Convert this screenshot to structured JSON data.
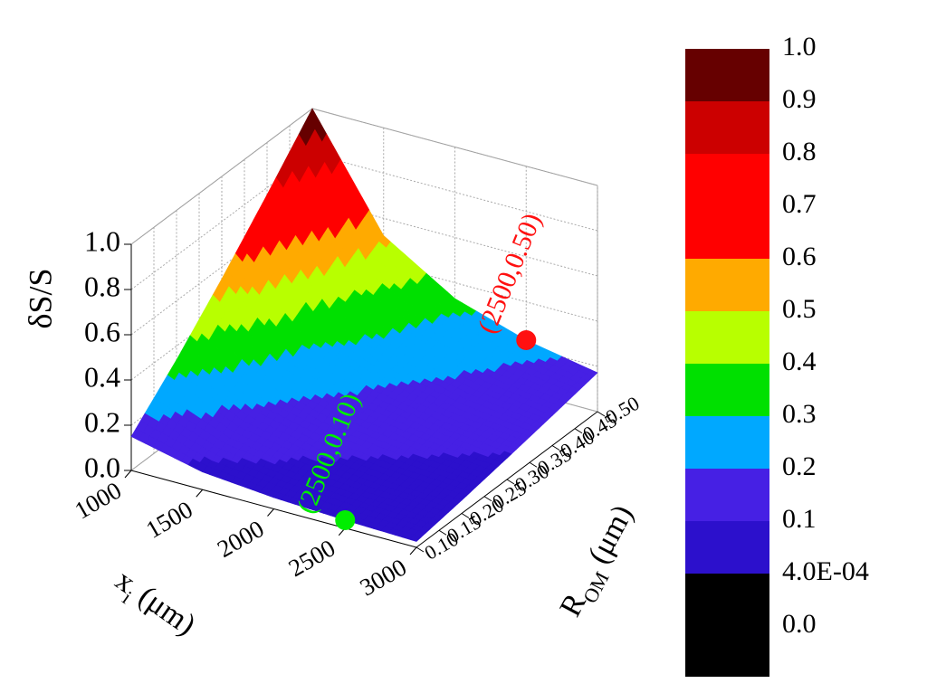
{
  "chart_data": {
    "type": "surface",
    "zlabel": "δS/S",
    "xlabel": {
      "main": "x",
      "sub": "i",
      "unit": "(μm)"
    },
    "ylabel": {
      "main": "R",
      "sub": "OM",
      "unit": "(μm)"
    },
    "x": [
      1000,
      1500,
      2000,
      2500,
      3000
    ],
    "y": [
      0.1,
      0.2,
      0.3,
      0.4,
      0.5
    ],
    "z": [
      [
        0.15,
        0.078,
        0.05,
        0.035,
        0.026
      ],
      [
        0.339,
        0.177,
        0.112,
        0.078,
        0.058
      ],
      [
        0.547,
        0.286,
        0.181,
        0.126,
        0.094
      ],
      [
        0.769,
        0.402,
        0.254,
        0.178,
        0.132
      ],
      [
        1.0,
        0.523,
        0.33,
        0.231,
        0.172
      ]
    ],
    "xlim": [
      1000,
      3000
    ],
    "xticks": [
      1000,
      1500,
      2000,
      2500,
      3000
    ],
    "ylim": [
      0.1,
      0.5
    ],
    "yticks": [
      {
        "value": 0.1,
        "label": "0.10"
      },
      {
        "value": 0.15,
        "label": "0.15"
      },
      {
        "value": 0.2,
        "label": "0.20"
      },
      {
        "value": 0.25,
        "label": "0.25"
      },
      {
        "value": 0.3,
        "label": "0.30"
      },
      {
        "value": 0.35,
        "label": "0.35"
      },
      {
        "value": 0.4,
        "label": "0.40"
      },
      {
        "value": 0.45,
        "label": "0.45"
      },
      {
        "value": 0.5,
        "label": "0.50"
      }
    ],
    "zlim": [
      0,
      1
    ],
    "zticks": [
      {
        "value": 0,
        "label": "0.0"
      },
      {
        "value": 0.2,
        "label": "0.2"
      },
      {
        "value": 0.4,
        "label": "0.4"
      },
      {
        "value": 0.6,
        "label": "0.6"
      },
      {
        "value": 0.8,
        "label": "0.8"
      },
      {
        "value": 1,
        "label": "1.0"
      }
    ],
    "grid": true,
    "colorbar": {
      "levels": [
        {
          "value": 0,
          "label": "0.0"
        },
        {
          "value": 0.0004,
          "label": "4.0E-04"
        },
        {
          "value": 0.1,
          "label": "0.1"
        },
        {
          "value": 0.2,
          "label": "0.2"
        },
        {
          "value": 0.3,
          "label": "0.3"
        },
        {
          "value": 0.4,
          "label": "0.4"
        },
        {
          "value": 0.5,
          "label": "0.5"
        },
        {
          "value": 0.6,
          "label": "0.6"
        },
        {
          "value": 0.7,
          "label": "0.7"
        },
        {
          "value": 0.8,
          "label": "0.8"
        },
        {
          "value": 0.9,
          "label": "0.9"
        },
        {
          "value": 1,
          "label": "1.0"
        }
      ],
      "colors": [
        "#000000",
        "#2c10cc",
        "#4620e4",
        "#00a8ff",
        "#00e000",
        "#b8ff00",
        "#ffaa00",
        "#ff0000",
        "#ff0000",
        "#cc0000",
        "#660000"
      ],
      "below_color": "#000000"
    },
    "points": [
      {
        "x": 2500,
        "y": 0.1,
        "z": 0.035,
        "label": "(2500,0.10)",
        "color": "#00ee00"
      },
      {
        "x": 2500,
        "y": 0.5,
        "z": 0.231,
        "label": "(2500,0.50)",
        "color": "#ff1010"
      }
    ]
  }
}
